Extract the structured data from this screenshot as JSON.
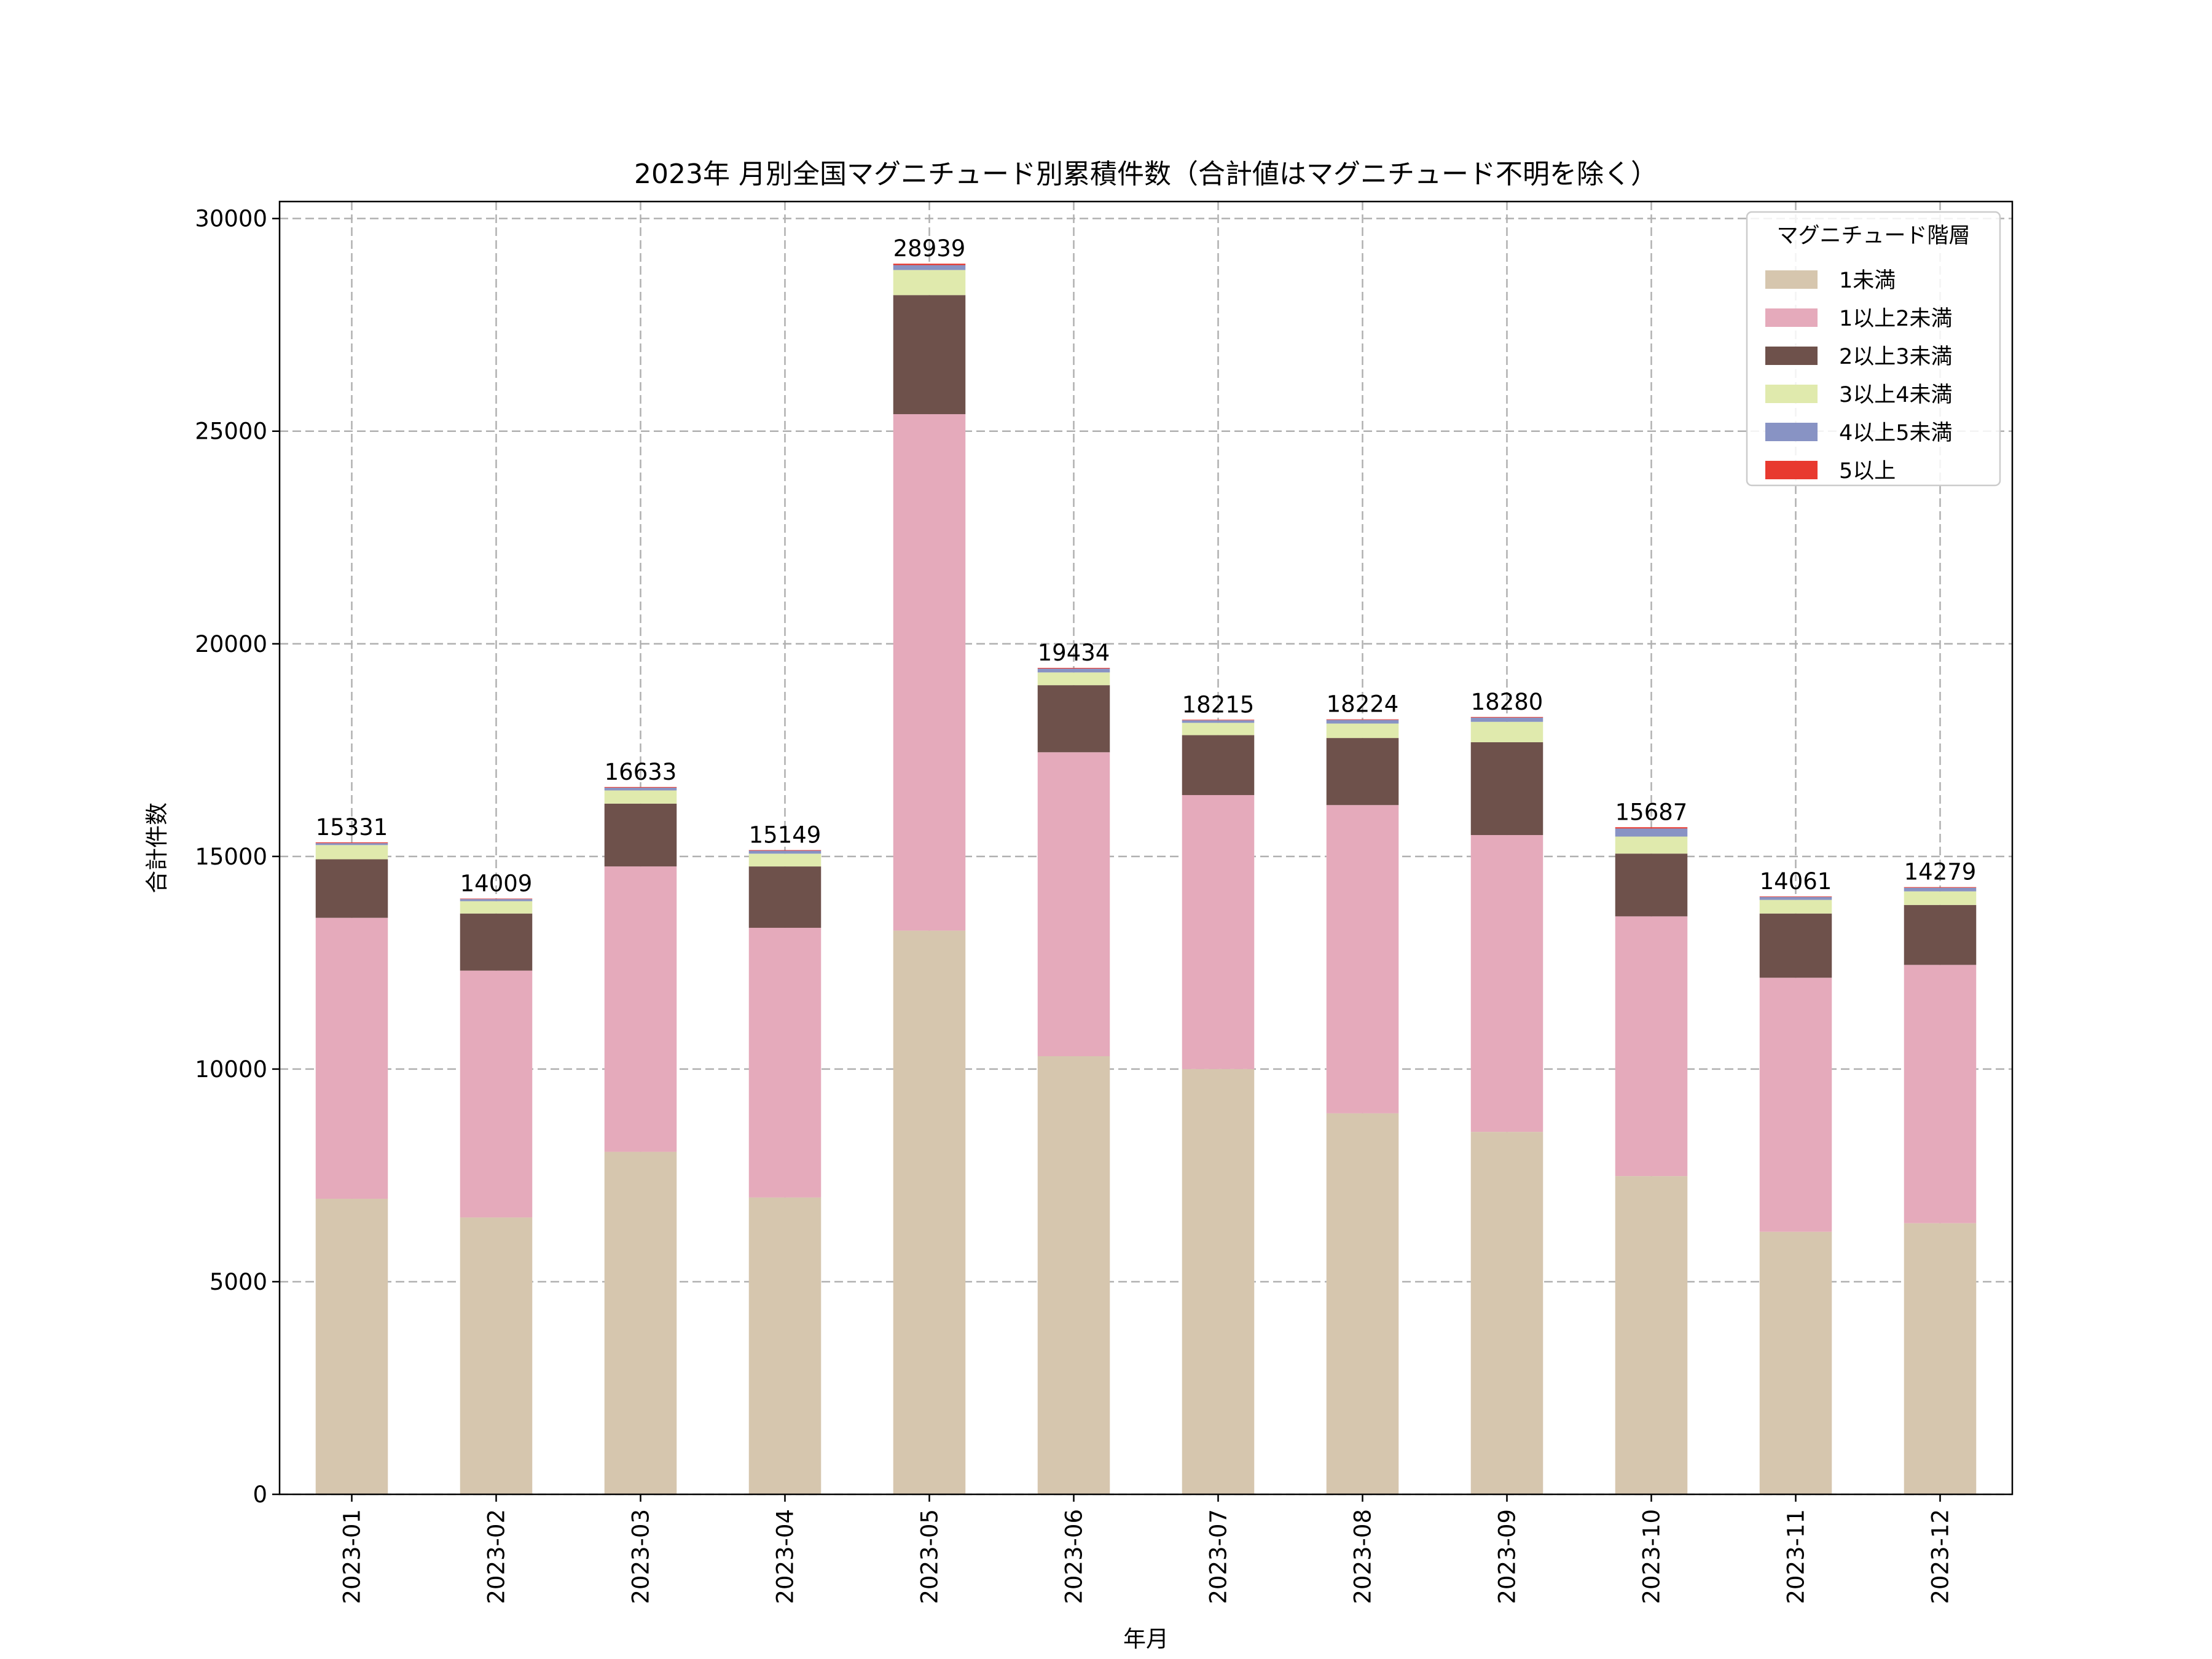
{
  "chart_data": {
    "type": "bar",
    "stacked": true,
    "title": "2023年 月別全国マグニチュード別累積件数（合計値はマグニチュード不明を除く）",
    "xlabel": "年月",
    "ylabel": "合計件数",
    "ylim": [
      0,
      30400
    ],
    "yticks": [
      0,
      5000,
      10000,
      15000,
      20000,
      25000,
      30000
    ],
    "grid": true,
    "legend": {
      "title": "マグニチュード階層",
      "placement": "top-right"
    },
    "categories": [
      "2023-01",
      "2023-02",
      "2023-03",
      "2023-04",
      "2023-05",
      "2023-06",
      "2023-07",
      "2023-08",
      "2023-09",
      "2023-10",
      "2023-11",
      "2023-12"
    ],
    "totals": [
      15331,
      14009,
      16633,
      15149,
      28939,
      19434,
      18215,
      18224,
      18280,
      15687,
      14061,
      14279
    ],
    "series": [
      {
        "name": "1未満",
        "color": "#d6c6ae",
        "values": [
          6950,
          6510,
          8054,
          6980,
          13255,
          10302,
          10000,
          8960,
          8523,
          7483,
          6174,
          6376
        ]
      },
      {
        "name": "1以上2未満",
        "color": "#e5aabb",
        "values": [
          6607,
          5805,
          6711,
          6342,
          12145,
          7148,
          6443,
          7248,
          6980,
          6108,
          5974,
          6074
        ]
      },
      {
        "name": "2以上3未満",
        "color": "#6e514b",
        "values": [
          1376,
          1343,
          1477,
          1443,
          2800,
          1577,
          1409,
          1577,
          2182,
          1476,
          1510,
          1409
        ]
      },
      {
        "name": "3以上4未満",
        "color": "#e0eaad",
        "values": [
          335,
          290,
          310,
          300,
          590,
          300,
          290,
          340,
          480,
          400,
          320,
          320
        ]
      },
      {
        "name": "4以上5未満",
        "color": "#8893c4",
        "values": [
          45,
          50,
          65,
          70,
          115,
          90,
          60,
          85,
          100,
          190,
          70,
          85
        ]
      },
      {
        "name": "5以上",
        "color": "#e8392f",
        "values": [
          18,
          11,
          16,
          14,
          34,
          17,
          13,
          14,
          15,
          30,
          13,
          15
        ]
      }
    ]
  }
}
